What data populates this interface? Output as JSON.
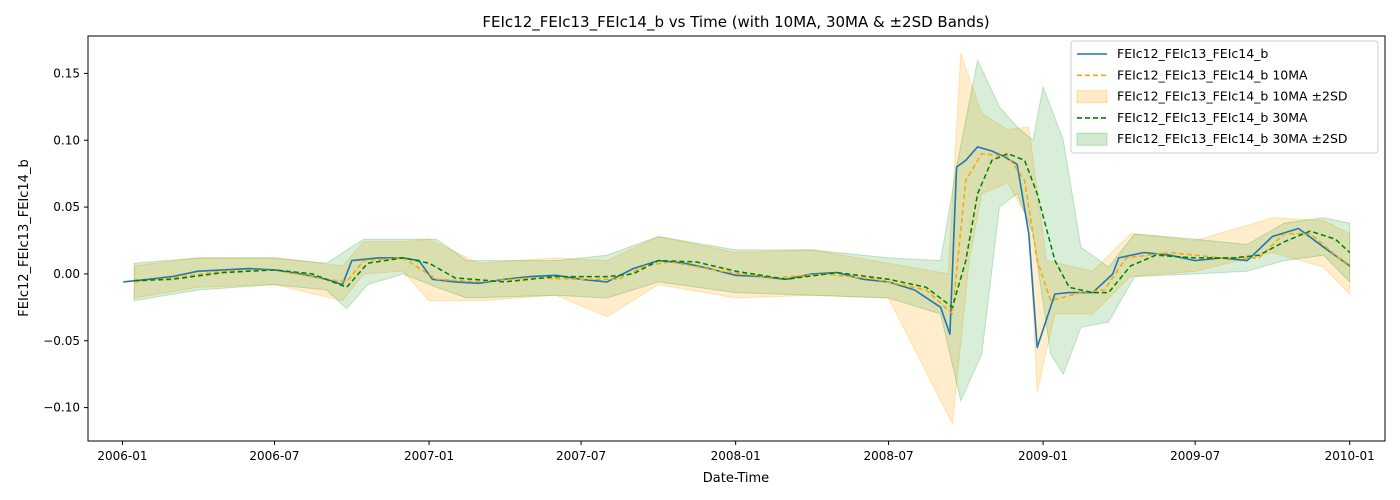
{
  "chart_data": {
    "type": "line",
    "title": "FEIc12_FEIc13_FEIc14_b vs Time (with 10MA, 30MA & ±2SD Bands)",
    "xlabel": "Date-Time",
    "ylabel": "FEIc12_FEIc13_FEIc14_b",
    "x_range": [
      "2005-11-21",
      "2010-02-12"
    ],
    "ylim": [
      -0.125,
      0.178
    ],
    "x_ticks": [
      "2006-01",
      "2006-07",
      "2007-01",
      "2007-07",
      "2008-01",
      "2008-07",
      "2009-01",
      "2009-07",
      "2010-01"
    ],
    "y_ticks": [
      -0.1,
      -0.05,
      0.0,
      0.05,
      0.1,
      0.15
    ],
    "y_tick_labels": [
      "−0.10",
      "−0.05",
      "0.00",
      "0.05",
      "0.10",
      "0.15"
    ],
    "grid": false,
    "legend_position": "top-right",
    "series": [
      {
        "name": "FEIc12_FEIc13_FEIc14_b",
        "style": "solid",
        "color": "#1f77b4",
        "points": [
          [
            "2006-01-02",
            -0.006
          ],
          [
            "2006-02-01",
            -0.004
          ],
          [
            "2006-03-01",
            -0.002
          ],
          [
            "2006-04-01",
            0.002
          ],
          [
            "2006-05-01",
            0.003
          ],
          [
            "2006-06-01",
            0.004
          ],
          [
            "2006-07-01",
            0.003
          ],
          [
            "2006-08-01",
            0.0
          ],
          [
            "2006-09-01",
            -0.004
          ],
          [
            "2006-09-20",
            -0.008
          ],
          [
            "2006-10-01",
            0.01
          ],
          [
            "2006-11-01",
            0.012
          ],
          [
            "2006-12-01",
            0.012
          ],
          [
            "2006-12-20",
            0.01
          ],
          [
            "2007-01-05",
            -0.004
          ],
          [
            "2007-02-01",
            -0.006
          ],
          [
            "2007-03-01",
            -0.007
          ],
          [
            "2007-04-01",
            -0.004
          ],
          [
            "2007-05-01",
            -0.002
          ],
          [
            "2007-06-01",
            -0.001
          ],
          [
            "2007-07-01",
            -0.004
          ],
          [
            "2007-08-01",
            -0.006
          ],
          [
            "2007-09-01",
            0.004
          ],
          [
            "2007-10-01",
            0.01
          ],
          [
            "2007-11-01",
            0.008
          ],
          [
            "2007-12-01",
            0.004
          ],
          [
            "2008-01-01",
            -0.001
          ],
          [
            "2008-02-01",
            -0.002
          ],
          [
            "2008-03-01",
            -0.004
          ],
          [
            "2008-04-01",
            0.0
          ],
          [
            "2008-05-01",
            0.001
          ],
          [
            "2008-06-01",
            -0.004
          ],
          [
            "2008-07-01",
            -0.006
          ],
          [
            "2008-08-01",
            -0.012
          ],
          [
            "2008-09-01",
            -0.025
          ],
          [
            "2008-09-12",
            -0.045
          ],
          [
            "2008-09-20",
            0.08
          ],
          [
            "2008-10-01",
            0.085
          ],
          [
            "2008-10-15",
            0.095
          ],
          [
            "2008-11-01",
            0.092
          ],
          [
            "2008-11-15",
            0.088
          ],
          [
            "2008-12-01",
            0.082
          ],
          [
            "2008-12-15",
            0.03
          ],
          [
            "2008-12-25",
            -0.055
          ],
          [
            "2009-01-15",
            -0.015
          ],
          [
            "2009-02-01",
            -0.014
          ],
          [
            "2009-03-01",
            -0.014
          ],
          [
            "2009-03-25",
            0.0
          ],
          [
            "2009-04-01",
            0.012
          ],
          [
            "2009-05-01",
            0.016
          ],
          [
            "2009-06-01",
            0.014
          ],
          [
            "2009-07-01",
            0.01
          ],
          [
            "2009-08-01",
            0.012
          ],
          [
            "2009-09-01",
            0.01
          ],
          [
            "2009-10-01",
            0.028
          ],
          [
            "2009-11-01",
            0.034
          ],
          [
            "2009-12-01",
            0.02
          ],
          [
            "2010-01-01",
            0.006
          ]
        ]
      },
      {
        "name": "FEIc12_FEIc13_FEIc14_b 10MA",
        "style": "dashed",
        "color": "#ffa500",
        "points": [
          [
            "2006-01-15",
            -0.006
          ],
          [
            "2006-03-01",
            -0.003
          ],
          [
            "2006-05-01",
            0.002
          ],
          [
            "2006-07-01",
            0.003
          ],
          [
            "2006-09-01",
            -0.004
          ],
          [
            "2006-09-25",
            -0.006
          ],
          [
            "2006-10-15",
            0.01
          ],
          [
            "2006-12-01",
            0.012
          ],
          [
            "2007-01-10",
            -0.004
          ],
          [
            "2007-03-01",
            -0.006
          ],
          [
            "2007-05-01",
            -0.003
          ],
          [
            "2007-07-01",
            -0.004
          ],
          [
            "2007-08-15",
            -0.004
          ],
          [
            "2007-09-15",
            0.006
          ],
          [
            "2007-10-15",
            0.009
          ],
          [
            "2007-12-15",
            0.002
          ],
          [
            "2008-02-15",
            -0.003
          ],
          [
            "2008-04-15",
            0.0
          ],
          [
            "2008-06-15",
            -0.004
          ],
          [
            "2008-08-15",
            -0.012
          ],
          [
            "2008-09-15",
            -0.03
          ],
          [
            "2008-10-01",
            0.07
          ],
          [
            "2008-10-20",
            0.09
          ],
          [
            "2008-11-20",
            0.088
          ],
          [
            "2008-12-10",
            0.07
          ],
          [
            "2008-12-25",
            0.01
          ],
          [
            "2009-01-10",
            -0.02
          ],
          [
            "2009-02-15",
            -0.014
          ],
          [
            "2009-03-15",
            -0.012
          ],
          [
            "2009-04-10",
            0.012
          ],
          [
            "2009-06-01",
            0.016
          ],
          [
            "2009-08-01",
            0.012
          ],
          [
            "2009-09-15",
            0.012
          ],
          [
            "2009-10-15",
            0.03
          ],
          [
            "2009-11-15",
            0.03
          ],
          [
            "2010-01-01",
            0.005
          ]
        ]
      },
      {
        "name": "FEIc12_FEIc13_FEIc14_b 30MA",
        "style": "dashed",
        "color": "#008000",
        "points": [
          [
            "2006-01-15",
            -0.005
          ],
          [
            "2006-03-01",
            -0.004
          ],
          [
            "2006-05-01",
            0.001
          ],
          [
            "2006-07-01",
            0.003
          ],
          [
            "2006-08-15",
            0.0
          ],
          [
            "2006-09-25",
            -0.01
          ],
          [
            "2006-10-20",
            0.008
          ],
          [
            "2006-12-01",
            0.012
          ],
          [
            "2007-01-01",
            0.008
          ],
          [
            "2007-02-01",
            -0.003
          ],
          [
            "2007-04-01",
            -0.006
          ],
          [
            "2007-06-01",
            -0.002
          ],
          [
            "2007-08-01",
            -0.002
          ],
          [
            "2007-09-01",
            0.0
          ],
          [
            "2007-10-01",
            0.01
          ],
          [
            "2007-11-15",
            0.009
          ],
          [
            "2008-01-01",
            0.002
          ],
          [
            "2008-03-01",
            -0.004
          ],
          [
            "2008-05-01",
            0.001
          ],
          [
            "2008-07-01",
            -0.004
          ],
          [
            "2008-08-15",
            -0.01
          ],
          [
            "2008-09-15",
            -0.025
          ],
          [
            "2008-10-01",
            0.01
          ],
          [
            "2008-10-15",
            0.06
          ],
          [
            "2008-11-01",
            0.085
          ],
          [
            "2008-11-20",
            0.09
          ],
          [
            "2008-12-10",
            0.085
          ],
          [
            "2008-12-25",
            0.06
          ],
          [
            "2009-01-15",
            0.01
          ],
          [
            "2009-02-01",
            -0.01
          ],
          [
            "2009-03-01",
            -0.014
          ],
          [
            "2009-03-20",
            -0.014
          ],
          [
            "2009-04-15",
            0.006
          ],
          [
            "2009-05-15",
            0.014
          ],
          [
            "2009-07-01",
            0.012
          ],
          [
            "2009-08-15",
            0.012
          ],
          [
            "2009-09-15",
            0.014
          ],
          [
            "2009-10-15",
            0.024
          ],
          [
            "2009-11-15",
            0.032
          ],
          [
            "2009-12-15",
            0.026
          ],
          [
            "2010-01-01",
            0.016
          ]
        ]
      }
    ],
    "bands": [
      {
        "name": "FEIc12_FEIc13_FEIc14_b 10MA ±2SD",
        "color": "#ffa500",
        "opacity": 0.2,
        "upper": [
          [
            "2006-01-15",
            0.006
          ],
          [
            "2006-04-01",
            0.012
          ],
          [
            "2006-07-01",
            0.012
          ],
          [
            "2006-09-20",
            0.006
          ],
          [
            "2006-10-15",
            0.024
          ],
          [
            "2006-12-01",
            0.024
          ],
          [
            "2007-01-01",
            0.026
          ],
          [
            "2007-03-01",
            0.008
          ],
          [
            "2007-06-01",
            0.012
          ],
          [
            "2007-08-01",
            0.01
          ],
          [
            "2007-10-01",
            0.028
          ],
          [
            "2008-01-01",
            0.016
          ],
          [
            "2008-04-01",
            0.018
          ],
          [
            "2008-07-01",
            0.008
          ],
          [
            "2008-09-10",
            0.0
          ],
          [
            "2008-09-25",
            0.165
          ],
          [
            "2008-10-20",
            0.12
          ],
          [
            "2008-11-20",
            0.108
          ],
          [
            "2008-12-15",
            0.11
          ],
          [
            "2009-01-05",
            0.01
          ],
          [
            "2009-03-01",
            0.002
          ],
          [
            "2009-04-15",
            0.03
          ],
          [
            "2009-07-01",
            0.025
          ],
          [
            "2009-10-01",
            0.042
          ],
          [
            "2009-12-01",
            0.04
          ],
          [
            "2010-01-01",
            0.03
          ]
        ],
        "lower": [
          [
            "2006-01-15",
            -0.018
          ],
          [
            "2006-04-01",
            -0.01
          ],
          [
            "2006-07-01",
            -0.008
          ],
          [
            "2006-09-20",
            -0.02
          ],
          [
            "2006-10-15",
            0.0
          ],
          [
            "2006-12-01",
            0.002
          ],
          [
            "2007-01-01",
            -0.02
          ],
          [
            "2007-03-01",
            -0.02
          ],
          [
            "2007-06-01",
            -0.016
          ],
          [
            "2007-08-01",
            -0.032
          ],
          [
            "2007-10-01",
            -0.008
          ],
          [
            "2008-01-01",
            -0.018
          ],
          [
            "2008-04-01",
            -0.016
          ],
          [
            "2008-07-01",
            -0.018
          ],
          [
            "2008-09-15",
            -0.112
          ],
          [
            "2008-10-05",
            0.01
          ],
          [
            "2008-10-20",
            0.06
          ],
          [
            "2008-11-20",
            0.068
          ],
          [
            "2008-12-15",
            0.04
          ],
          [
            "2008-12-25",
            -0.088
          ],
          [
            "2009-01-15",
            -0.03
          ],
          [
            "2009-03-01",
            -0.03
          ],
          [
            "2009-04-15",
            -0.002
          ],
          [
            "2009-07-01",
            0.002
          ],
          [
            "2009-10-01",
            0.016
          ],
          [
            "2009-12-01",
            0.005
          ],
          [
            "2010-01-01",
            -0.015
          ]
        ]
      },
      {
        "name": "FEIc12_FEIc13_FEIc14_b 30MA ±2SD",
        "color": "#2ca02c",
        "opacity": 0.18,
        "upper": [
          [
            "2006-01-15",
            0.008
          ],
          [
            "2006-04-01",
            0.012
          ],
          [
            "2006-07-01",
            0.012
          ],
          [
            "2006-09-01",
            0.008
          ],
          [
            "2006-10-15",
            0.026
          ],
          [
            "2006-12-01",
            0.026
          ],
          [
            "2007-01-10",
            0.026
          ],
          [
            "2007-02-15",
            0.01
          ],
          [
            "2007-06-01",
            0.01
          ],
          [
            "2007-08-01",
            0.014
          ],
          [
            "2007-10-01",
            0.028
          ],
          [
            "2008-01-01",
            0.018
          ],
          [
            "2008-04-01",
            0.018
          ],
          [
            "2008-07-01",
            0.012
          ],
          [
            "2008-09-01",
            0.01
          ],
          [
            "2008-09-20",
            0.08
          ],
          [
            "2008-10-15",
            0.16
          ],
          [
            "2008-11-10",
            0.125
          ],
          [
            "2008-12-01",
            0.11
          ],
          [
            "2008-12-20",
            0.1
          ],
          [
            "2009-01-01",
            0.14
          ],
          [
            "2009-01-25",
            0.1
          ],
          [
            "2009-02-15",
            0.02
          ],
          [
            "2009-03-20",
            0.005
          ],
          [
            "2009-04-20",
            0.03
          ],
          [
            "2009-07-01",
            0.026
          ],
          [
            "2009-09-01",
            0.022
          ],
          [
            "2009-10-15",
            0.038
          ],
          [
            "2009-12-01",
            0.042
          ],
          [
            "2010-01-01",
            0.038
          ]
        ],
        "lower": [
          [
            "2006-01-15",
            -0.02
          ],
          [
            "2006-04-01",
            -0.012
          ],
          [
            "2006-07-01",
            -0.008
          ],
          [
            "2006-09-01",
            -0.012
          ],
          [
            "2006-09-25",
            -0.026
          ],
          [
            "2006-10-20",
            -0.008
          ],
          [
            "2006-12-01",
            0.0
          ],
          [
            "2007-01-10",
            -0.01
          ],
          [
            "2007-02-15",
            -0.018
          ],
          [
            "2007-06-01",
            -0.016
          ],
          [
            "2007-08-01",
            -0.018
          ],
          [
            "2007-10-01",
            -0.006
          ],
          [
            "2008-01-01",
            -0.014
          ],
          [
            "2008-04-01",
            -0.016
          ],
          [
            "2008-07-01",
            -0.018
          ],
          [
            "2008-09-01",
            -0.03
          ],
          [
            "2008-09-25",
            -0.095
          ],
          [
            "2008-10-20",
            -0.06
          ],
          [
            "2008-11-10",
            0.05
          ],
          [
            "2008-12-01",
            0.06
          ],
          [
            "2008-12-20",
            0.03
          ],
          [
            "2009-01-10",
            -0.06
          ],
          [
            "2009-01-25",
            -0.075
          ],
          [
            "2009-02-15",
            -0.04
          ],
          [
            "2009-03-20",
            -0.036
          ],
          [
            "2009-04-20",
            -0.002
          ],
          [
            "2009-07-01",
            0.0
          ],
          [
            "2009-09-01",
            0.002
          ],
          [
            "2009-10-15",
            0.01
          ],
          [
            "2009-12-01",
            0.014
          ],
          [
            "2010-01-01",
            -0.006
          ]
        ]
      }
    ],
    "legend": [
      {
        "label": "FEIc12_FEIc13_FEIc14_b",
        "kind": "line-solid",
        "color": "#1f77b4"
      },
      {
        "label": "FEIc12_FEIc13_FEIc14_b 10MA",
        "kind": "line-dashed",
        "color": "#ffa500"
      },
      {
        "label": "FEIc12_FEIc13_FEIc14_b 10MA ±2SD",
        "kind": "patch",
        "color": "#ffa500"
      },
      {
        "label": "FEIc12_FEIc13_FEIc14_b 30MA",
        "kind": "line-dashed",
        "color": "#008000"
      },
      {
        "label": "FEIc12_FEIc13_FEIc14_b 30MA ±2SD",
        "kind": "patch",
        "color": "#2ca02c"
      }
    ]
  }
}
